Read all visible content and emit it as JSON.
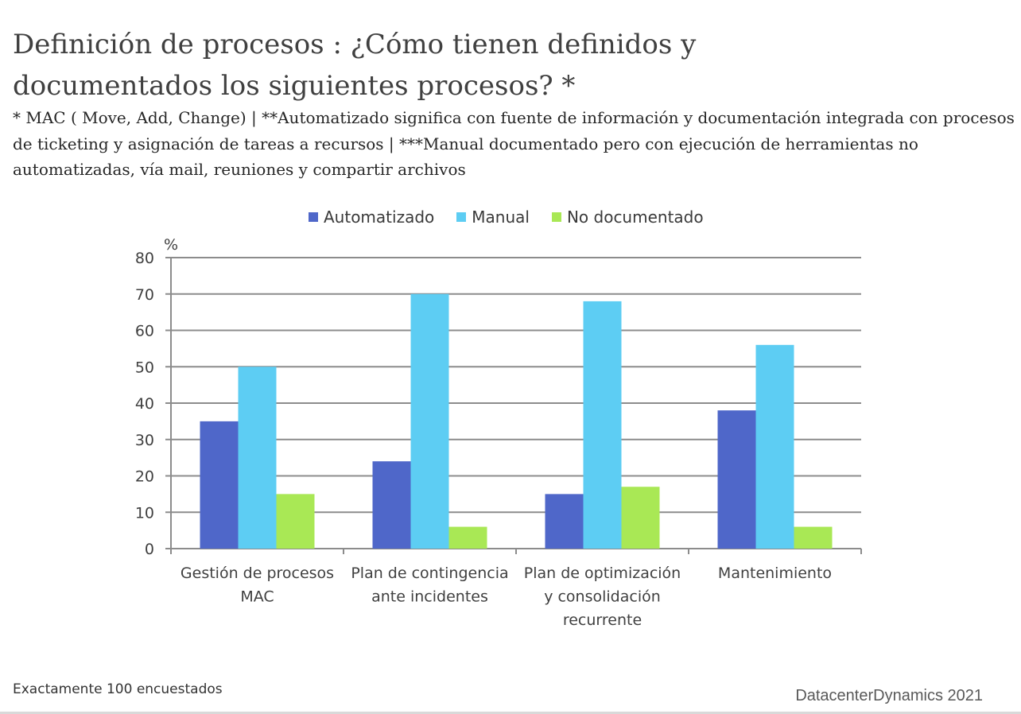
{
  "title": "Definición de procesos : ¿Cómo tienen definidos y documentados los siguientes procesos? *",
  "subtitle": "* MAC ( Move, Add, Change) | **Automatizado significa con fuente de información y documentación integrada con procesos de ticketing y asignación de tareas a recursos | ***Manual documentado pero con ejecución de herramientas no automatizadas, vía mail, reuniones y compartir archivos",
  "footnote": "Exactamente 100 encuestados",
  "source": "DatacenterDynamics 2021",
  "chart_data": {
    "type": "bar",
    "ylabel": "%",
    "ylim": [
      0,
      80
    ],
    "yticks": [
      0,
      10,
      20,
      30,
      40,
      50,
      60,
      70,
      80
    ],
    "grid": true,
    "legend_position": "top",
    "categories": [
      [
        "Gestión de procesos",
        "MAC"
      ],
      [
        "Plan de contingencia",
        "ante incidentes"
      ],
      [
        "Plan de optimización",
        "y consolidación",
        "recurrente"
      ],
      [
        "Mantenimiento"
      ]
    ],
    "series": [
      {
        "name": "Automatizado",
        "color": "#4f67c9",
        "values": [
          35,
          24,
          15,
          38
        ]
      },
      {
        "name": "Manual",
        "color": "#5dcdf3",
        "values": [
          50,
          70,
          68,
          56
        ]
      },
      {
        "name": "No documentado",
        "color": "#a9e855",
        "values": [
          15,
          6,
          17,
          6
        ]
      }
    ]
  }
}
